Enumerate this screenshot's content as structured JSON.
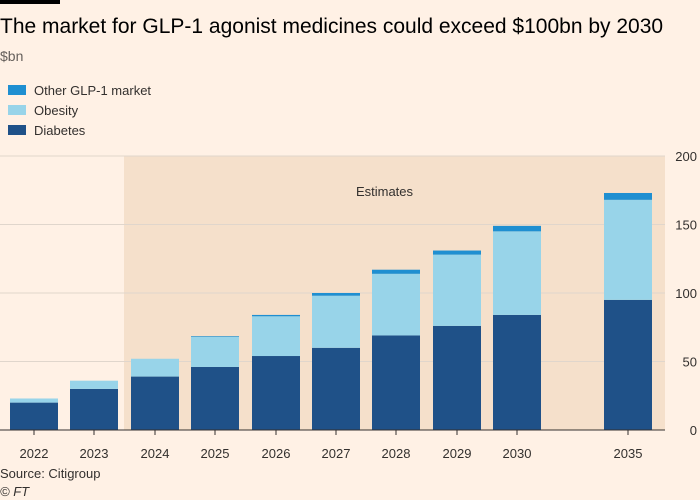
{
  "title": "The market for GLP-1 agonist medicines could exceed $100bn by 2030",
  "subtitle": "$bn",
  "source": "Source: Citigroup",
  "credit": "© FT",
  "colors": {
    "background": "#fff1e5",
    "estimates_shade": "#f5e0cb",
    "diabetes": "#1f5188",
    "obesity": "#98d4e9",
    "other": "#1f8fd1",
    "grid": "#e0d6cc",
    "axis": "#33302e"
  },
  "chart_data": {
    "type": "bar",
    "stacked": true,
    "categories": [
      "2022",
      "2023",
      "2024",
      "2025",
      "2026",
      "2027",
      "2028",
      "2029",
      "2030",
      "2035"
    ],
    "series": [
      {
        "name": "Diabetes",
        "color": "#1f5188",
        "values": [
          20,
          30,
          39,
          46,
          54,
          60,
          69,
          76,
          84,
          95
        ]
      },
      {
        "name": "Obesity",
        "color": "#98d4e9",
        "values": [
          3,
          6,
          13,
          22,
          29,
          38,
          45,
          52,
          61,
          73
        ]
      },
      {
        "name": "Other GLP-1 market",
        "color": "#1f8fd1",
        "values": [
          0,
          0,
          0,
          0.5,
          1,
          2,
          3,
          3,
          4,
          5
        ]
      }
    ],
    "legend_order": [
      "Other GLP-1 market",
      "Obesity",
      "Diabetes"
    ],
    "yticks": [
      0,
      50,
      100,
      150,
      200
    ],
    "ylim": [
      0,
      200
    ],
    "y_axis_side": "right",
    "grid": true,
    "annotation": {
      "label": "Estimates",
      "from_category": "2024",
      "to_category": "2035"
    }
  }
}
